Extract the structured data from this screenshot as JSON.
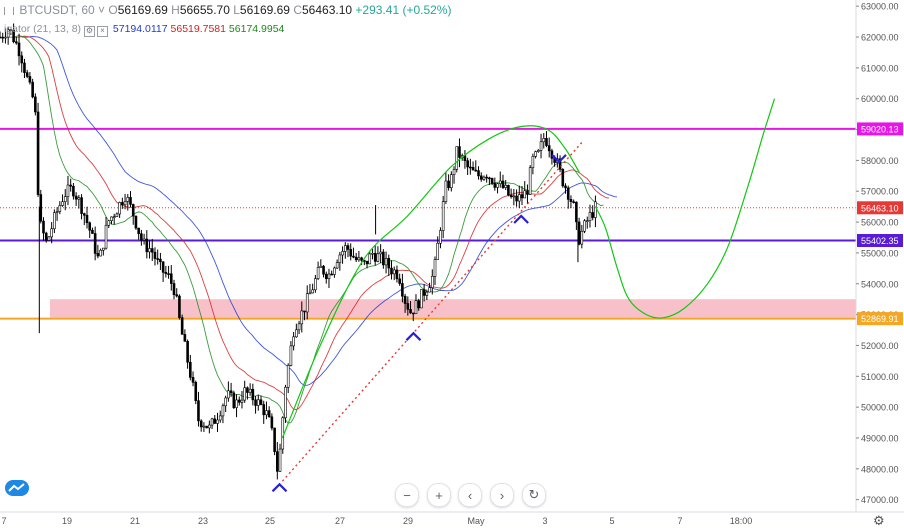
{
  "legend": {
    "symbol": "BTCUSDT, 60",
    "chevron": "˅",
    "open_label": "O",
    "open": "56169.69",
    "high_label": "H",
    "high": "56655.70",
    "low_label": "L",
    "low": "56169.69",
    "close_label": "C",
    "close": "56463.10",
    "change": "+293.41 (+0.52%)"
  },
  "indicator": {
    "name": "igator (21, 13, 8)",
    "jaw": "57194.0117",
    "teeth": "56519.7581",
    "lips": "56174.9954",
    "colors": {
      "jaw": "#1e3cd2",
      "teeth": "#d42020",
      "lips": "#1a8a1a"
    }
  },
  "toolbar": {
    "zoom_out": "−",
    "zoom_in": "+",
    "scroll_left": "‹",
    "scroll_right": "›",
    "reset": "↻"
  },
  "icons": {
    "logo": "tradingview-logo-icon",
    "settings": "gear-icon"
  },
  "chart_data": {
    "type": "candlestick",
    "y_range": [
      46600,
      63200
    ],
    "y_ticks": [
      "47000.00",
      "48000.00",
      "49000.00",
      "50000.00",
      "51000.00",
      "52000.00",
      "53000.00",
      "54000.00",
      "55000.00",
      "56000.00",
      "57000.00",
      "58000.00",
      "59000.00",
      "60000.00",
      "61000.00",
      "62000.00",
      "63000.00"
    ],
    "y_tick_values": [
      47000,
      48000,
      49000,
      50000,
      51000,
      52000,
      53000,
      54000,
      55000,
      56000,
      57000,
      58000,
      59000,
      60000,
      61000,
      62000,
      63000
    ],
    "x_ticks": [
      "7",
      "19",
      "21",
      "23",
      "25",
      "27",
      "29",
      "May",
      "3",
      "5",
      "7",
      "18:00"
    ],
    "price_labels": [
      {
        "text": "59020.13",
        "value": 59020.13,
        "color": "#e815e8"
      },
      {
        "text": "56463.10",
        "value": 56463.1,
        "color": "#e53935"
      },
      {
        "text": "55402.35",
        "value": 55402.35,
        "color": "#5a1bd6"
      },
      {
        "text": "52869.91",
        "value": 52869.91,
        "color": "#f5a623"
      }
    ],
    "horizontal_lines": [
      {
        "value": 59020.13,
        "color": "#e815e8"
      },
      {
        "value": 55402.35,
        "color": "#5a1bd6"
      },
      {
        "value": 52869.91,
        "color": "#f5a623"
      }
    ],
    "current_price_line": {
      "value": 56463.1,
      "color": "#e53935"
    },
    "zone": {
      "from": 52900,
      "to": 53500,
      "color": "#f7b6bf"
    },
    "price_path": [
      [
        0,
        62000
      ],
      [
        0.3,
        62300
      ],
      [
        0.7,
        61500
      ],
      [
        1.0,
        60400
      ],
      [
        1.2,
        59800
      ],
      [
        1.35,
        56000
      ],
      [
        1.6,
        55300
      ],
      [
        1.9,
        56200
      ],
      [
        2.2,
        56900
      ],
      [
        2.5,
        57100
      ],
      [
        2.8,
        56500
      ],
      [
        3.1,
        55700
      ],
      [
        3.4,
        54700
      ],
      [
        3.7,
        56000
      ],
      [
        4.0,
        56400
      ],
      [
        4.3,
        56900
      ],
      [
        4.6,
        56200
      ],
      [
        4.9,
        55300
      ],
      [
        5.2,
        55100
      ],
      [
        5.5,
        54500
      ],
      [
        5.8,
        54200
      ],
      [
        6.0,
        53800
      ],
      [
        6.2,
        52600
      ],
      [
        6.4,
        51700
      ],
      [
        6.6,
        50800
      ],
      [
        6.8,
        49600
      ],
      [
        7.0,
        49500
      ],
      [
        7.2,
        49300
      ],
      [
        7.5,
        49800
      ],
      [
        7.8,
        50400
      ],
      [
        8.1,
        50100
      ],
      [
        8.4,
        50500
      ],
      [
        8.7,
        50300
      ],
      [
        9.0,
        50000
      ],
      [
        9.2,
        49700
      ],
      [
        9.4,
        48900
      ],
      [
        9.55,
        47800
      ],
      [
        9.8,
        50700
      ],
      [
        10.1,
        52600
      ],
      [
        10.4,
        53100
      ],
      [
        10.7,
        53800
      ],
      [
        11.0,
        54500
      ],
      [
        11.3,
        54300
      ],
      [
        11.6,
        54900
      ],
      [
        11.9,
        55200
      ],
      [
        12.2,
        54800
      ],
      [
        12.5,
        54600
      ],
      [
        12.8,
        55000
      ],
      [
        13.1,
        54800
      ],
      [
        13.4,
        54500
      ],
      [
        13.7,
        54300
      ],
      [
        13.9,
        53500
      ],
      [
        14.1,
        53100
      ],
      [
        14.3,
        53300
      ],
      [
        14.6,
        53800
      ],
      [
        14.9,
        54300
      ],
      [
        15.1,
        55700
      ],
      [
        15.3,
        57100
      ],
      [
        15.5,
        57400
      ],
      [
        15.7,
        58300
      ],
      [
        15.9,
        58000
      ],
      [
        16.1,
        57700
      ],
      [
        16.4,
        57500
      ],
      [
        16.7,
        57600
      ],
      [
        17.0,
        57300
      ],
      [
        17.3,
        57100
      ],
      [
        17.6,
        56700
      ],
      [
        17.9,
        56800
      ],
      [
        18.1,
        57000
      ],
      [
        18.3,
        58000
      ],
      [
        18.5,
        58200
      ],
      [
        18.7,
        58800
      ],
      [
        18.9,
        58400
      ],
      [
        19.1,
        58000
      ],
      [
        19.3,
        57400
      ],
      [
        19.5,
        57000
      ],
      [
        19.7,
        56500
      ],
      [
        19.85,
        55400
      ],
      [
        20.0,
        55700
      ],
      [
        20.2,
        56100
      ],
      [
        20.45,
        56463
      ]
    ],
    "x_span": [
      0,
      29.4
    ],
    "projection_path": [
      [
        20.45,
        56500
      ],
      [
        20.8,
        55800
      ],
      [
        21.2,
        54500
      ],
      [
        21.6,
        53500
      ],
      [
        22.2,
        53000
      ],
      [
        22.8,
        52900
      ],
      [
        23.5,
        53200
      ],
      [
        24.3,
        54000
      ],
      [
        25.0,
        55200
      ],
      [
        25.7,
        57200
      ],
      [
        26.2,
        58800
      ],
      [
        26.6,
        60000
      ]
    ],
    "arc_path": [
      [
        9.7,
        49000
      ],
      [
        11.0,
        52000
      ],
      [
        12.5,
        54800
      ],
      [
        14.0,
        56200
      ],
      [
        15.5,
        57800
      ],
      [
        16.8,
        58700
      ],
      [
        17.9,
        59100
      ],
      [
        18.8,
        59000
      ],
      [
        19.4,
        58400
      ],
      [
        19.9,
        57600
      ]
    ],
    "trend_line": {
      "from": [
        9.7,
        47600
      ],
      "to": [
        20.0,
        58600
      ],
      "color": "#e53935"
    },
    "markers": [
      {
        "x": 9.6,
        "y": 47400,
        "dir": "up"
      },
      {
        "x": 14.2,
        "y": 52300,
        "dir": "up"
      },
      {
        "x": 17.9,
        "y": 56100,
        "dir": "up"
      },
      {
        "x": 19.2,
        "y": 58050,
        "dir": "down"
      }
    ],
    "grid": false
  }
}
